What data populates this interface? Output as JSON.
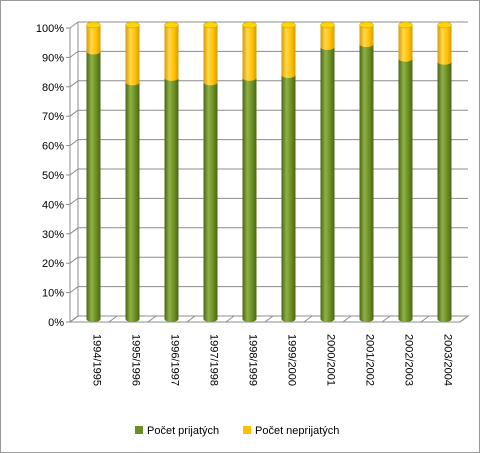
{
  "chart_data": {
    "type": "bar",
    "stacked": "percent",
    "style": "3d-cylinder",
    "categories": [
      "1994/1995",
      "1995/1996",
      "1996/1997",
      "1997/1998",
      "1998/1999",
      "1999/2000",
      "2000/2001",
      "2001/2002",
      "2002/2003",
      "2003/2004"
    ],
    "series": [
      {
        "name": "Počet prijatých",
        "color": "#6b8e23",
        "values": [
          91,
          80.5,
          82,
          80.5,
          82,
          83,
          92.5,
          93.5,
          88.5,
          87.5
        ]
      },
      {
        "name": "Počet neprijatých",
        "color": "#ffc000",
        "values": [
          9,
          19.5,
          18,
          19.5,
          18,
          17,
          7.5,
          6.5,
          11.5,
          12.5
        ]
      }
    ],
    "ylim": [
      0,
      100
    ],
    "yticks": [
      "0%",
      "10%",
      "20%",
      "30%",
      "40%",
      "50%",
      "60%",
      "70%",
      "80%",
      "90%",
      "100%"
    ],
    "grid": true,
    "legend_position": "bottom"
  }
}
